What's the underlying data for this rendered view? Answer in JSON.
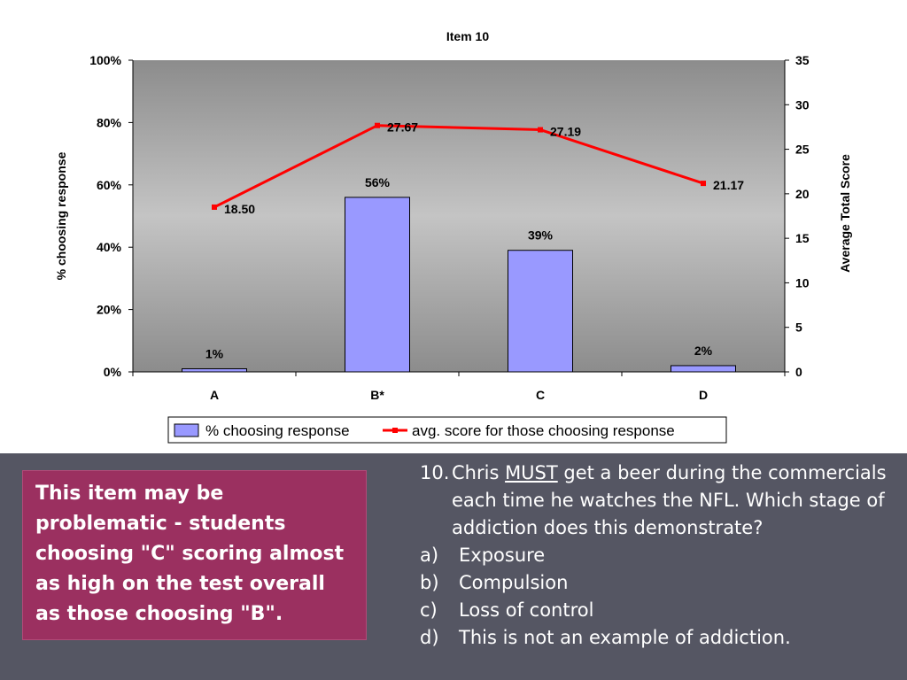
{
  "chart_data": {
    "type": "bar",
    "title": "Item 10",
    "categories": [
      "A",
      "B*",
      "C",
      "D"
    ],
    "series": [
      {
        "name": "% choosing response",
        "type": "bar",
        "axis": "left",
        "values": [
          1,
          56,
          39,
          2
        ],
        "labels": [
          "1%",
          "56%",
          "39%",
          "2%"
        ],
        "color": "#9999ff"
      },
      {
        "name": "avg. score for those choosing response",
        "type": "line",
        "axis": "right",
        "values": [
          18.5,
          27.67,
          27.19,
          21.17
        ],
        "labels": [
          "18.50",
          "27.67",
          "27.19",
          "21.17"
        ],
        "color": "#ff0000"
      }
    ],
    "ylabel": "% choosing response",
    "ylabel_right": "Average Total Score",
    "ylim": [
      0,
      100
    ],
    "ylim_right": [
      0,
      35
    ],
    "y_ticks": [
      "0%",
      "20%",
      "40%",
      "60%",
      "80%",
      "100%"
    ],
    "y_ticks_right": [
      "0",
      "5",
      "10",
      "15",
      "20",
      "25",
      "30",
      "35"
    ],
    "legend_position": "bottom"
  },
  "callout": {
    "text": "This item may be problematic - students choosing \"C\" scoring almost as high on the test overall as those choosing \"B\"."
  },
  "question": {
    "number": "10.",
    "text_before": "Chris ",
    "emphasis": "MUST",
    "text_after": " get a beer during the commercials each time he watches the NFL. Which stage of addiction does this demonstrate?",
    "options": [
      {
        "letter": "a)",
        "text": "Exposure"
      },
      {
        "letter": "b)",
        "text": "Compulsion"
      },
      {
        "letter": "c)",
        "text": "Loss of control"
      },
      {
        "letter": "d)",
        "text": "This is not an example of addiction."
      }
    ]
  },
  "colors": {
    "callout_bg": "#9b3060",
    "panel_bg": "#555663",
    "bar": "#9999ff",
    "line": "#ff0000"
  }
}
